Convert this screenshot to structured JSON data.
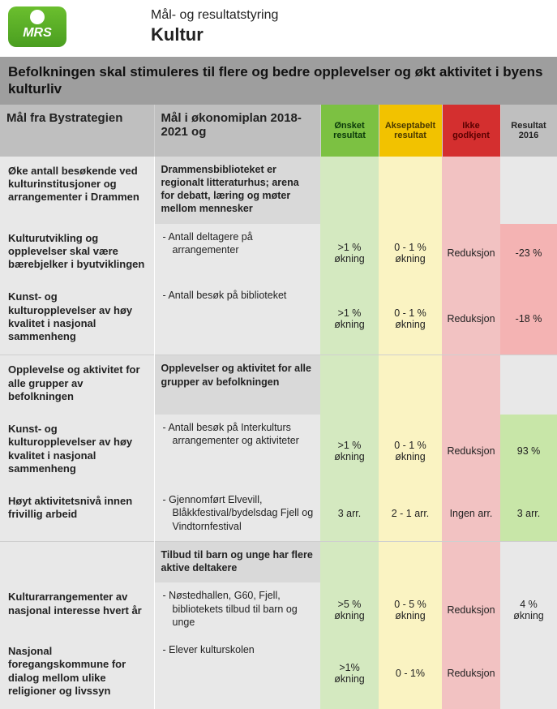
{
  "header": {
    "logo_text": "MRS",
    "subtitle": "Mål- og resultatstyring",
    "title": "Kultur"
  },
  "banner": "Befolkningen skal stimuleres til flere og bedre opplevelser og økt aktivitet i byens kulturliv",
  "columns": {
    "col1": "Mål fra Bystrategien",
    "col2": "Mål i økonomiplan 2018-2021 og",
    "col3": "Ønsket resultat",
    "col4": "Akseptabelt resultat",
    "col5": "Ikke godkjent",
    "col6": "Resultat 2016"
  },
  "goals": {
    "g1": "Øke antall besøkende ved kulturinstitusjoner og arrangementer i Drammen",
    "g2": "Kulturutvikling og opplevelser skal være bærebjelker i byutviklingen",
    "g3": "Kunst- og kulturopplevelser av høy kvalitet i nasjonal sammenheng",
    "g4": "Opplevelse og aktivitet for alle grupper av befolkningen",
    "g5": "Kunst- og kulturopplevelser av høy kvalitet i nasjonal sammenheng",
    "g6": "Høyt aktivitetsnivå innen frivillig arbeid",
    "g7": "Kulturarrangementer av nasjonal interesse hvert år",
    "g8": "Nasjonal foregangskommune for dialog mellom ulike religioner og livssyn"
  },
  "sections": {
    "s1": "Drammensbiblioteket er regionalt litteraturhus; arena for debatt, læring og møter mellom mennesker",
    "s2": "Opplevelser og aktivitet for alle grupper av befolkningen",
    "s3": "Tilbud til barn og unge har flere aktive deltakere"
  },
  "rows": {
    "r1": {
      "label": "Antall deltagere på arrangementer",
      "green": ">1 % økning",
      "yellow": "0 - 1 % økning",
      "red": "Reduksjon",
      "result": "-23 %"
    },
    "r2": {
      "label": "Antall besøk på biblioteket",
      "green": ">1 % økning",
      "yellow": "0 - 1 % økning",
      "red": "Reduksjon",
      "result": "-18 %"
    },
    "r3": {
      "label": "Antall besøk på Interkulturs arrangementer og aktiviteter",
      "green": ">1 % økning",
      "yellow": "0 - 1 % økning",
      "red": "Reduksjon",
      "result": "93 %"
    },
    "r4": {
      "label": "Gjennomført Elvevill, Blåkkfestival/bydelsdag Fjell og Vindtornfestival",
      "green": "3 arr.",
      "yellow": "2 - 1 arr.",
      "red": "Ingen arr.",
      "result": "3 arr."
    },
    "r5": {
      "label": "Nøstedhallen, G60, Fjell, bibliotekets tilbud til barn og unge",
      "green": ">5 % økning",
      "yellow": "0 - 5 % økning",
      "red": "Reduksjon",
      "result": "4 % økning"
    },
    "r6": {
      "label": "Elever kulturskolen",
      "green": ">1% økning",
      "yellow": "0 - 1%",
      "red": "Reduksjon",
      "result": ""
    }
  },
  "colors": {
    "header_grey": "#bfbfbf",
    "green_header": "#7cc142",
    "yellow_header": "#f2c200",
    "red_header": "#d42f2f",
    "light_green": "#d4e9c0",
    "light_yellow": "#faf3c2",
    "light_red": "#f2c2c2",
    "result_green": "#c8e6a8",
    "result_red": "#f4b3b3",
    "row_grey": "#e8e8e8",
    "section_grey": "#d9d9d9",
    "banner_grey": "#9e9e9e"
  }
}
